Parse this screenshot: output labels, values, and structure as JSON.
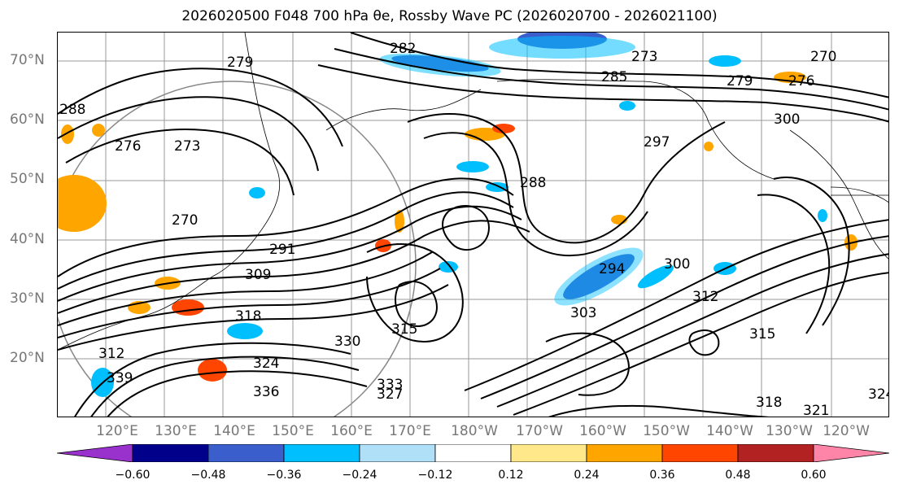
{
  "title": "2026020500 F048 700 hPa θe, Rossby Wave PC (2026020700 - 2026021100)",
  "map": {
    "lat_labels": [
      "70°N",
      "60°N",
      "50°N",
      "40°N",
      "30°N",
      "20°N"
    ],
    "lon_labels": [
      "120°E",
      "130°E",
      "140°E",
      "150°E",
      "160°E",
      "170°E",
      "180°W",
      "170°W",
      "160°W",
      "150°W",
      "140°W",
      "130°W",
      "120°W"
    ],
    "contour_labels": [
      "282",
      "279",
      "273",
      "270",
      "276",
      "288",
      "285",
      "279",
      "276",
      "297",
      "300",
      "273",
      "270",
      "291",
      "309",
      "318",
      "312",
      "294",
      "303",
      "312",
      "315",
      "330",
      "324",
      "339",
      "336",
      "333",
      "327",
      "318",
      "321",
      "324",
      "288",
      "300",
      "315"
    ]
  },
  "colorbar": {
    "ticks": [
      "−0.60",
      "−0.48",
      "−0.36",
      "−0.24",
      "−0.12",
      "0.12",
      "0.24",
      "0.36",
      "0.48",
      "0.60"
    ],
    "colors": [
      "#9932cc",
      "#00008b",
      "#3a5fcd",
      "#00bfff",
      "#b0e0f8",
      "#ffffff",
      "#ffe88a",
      "#ffa500",
      "#ff4500",
      "#b22222",
      "#ff85a8"
    ]
  }
}
